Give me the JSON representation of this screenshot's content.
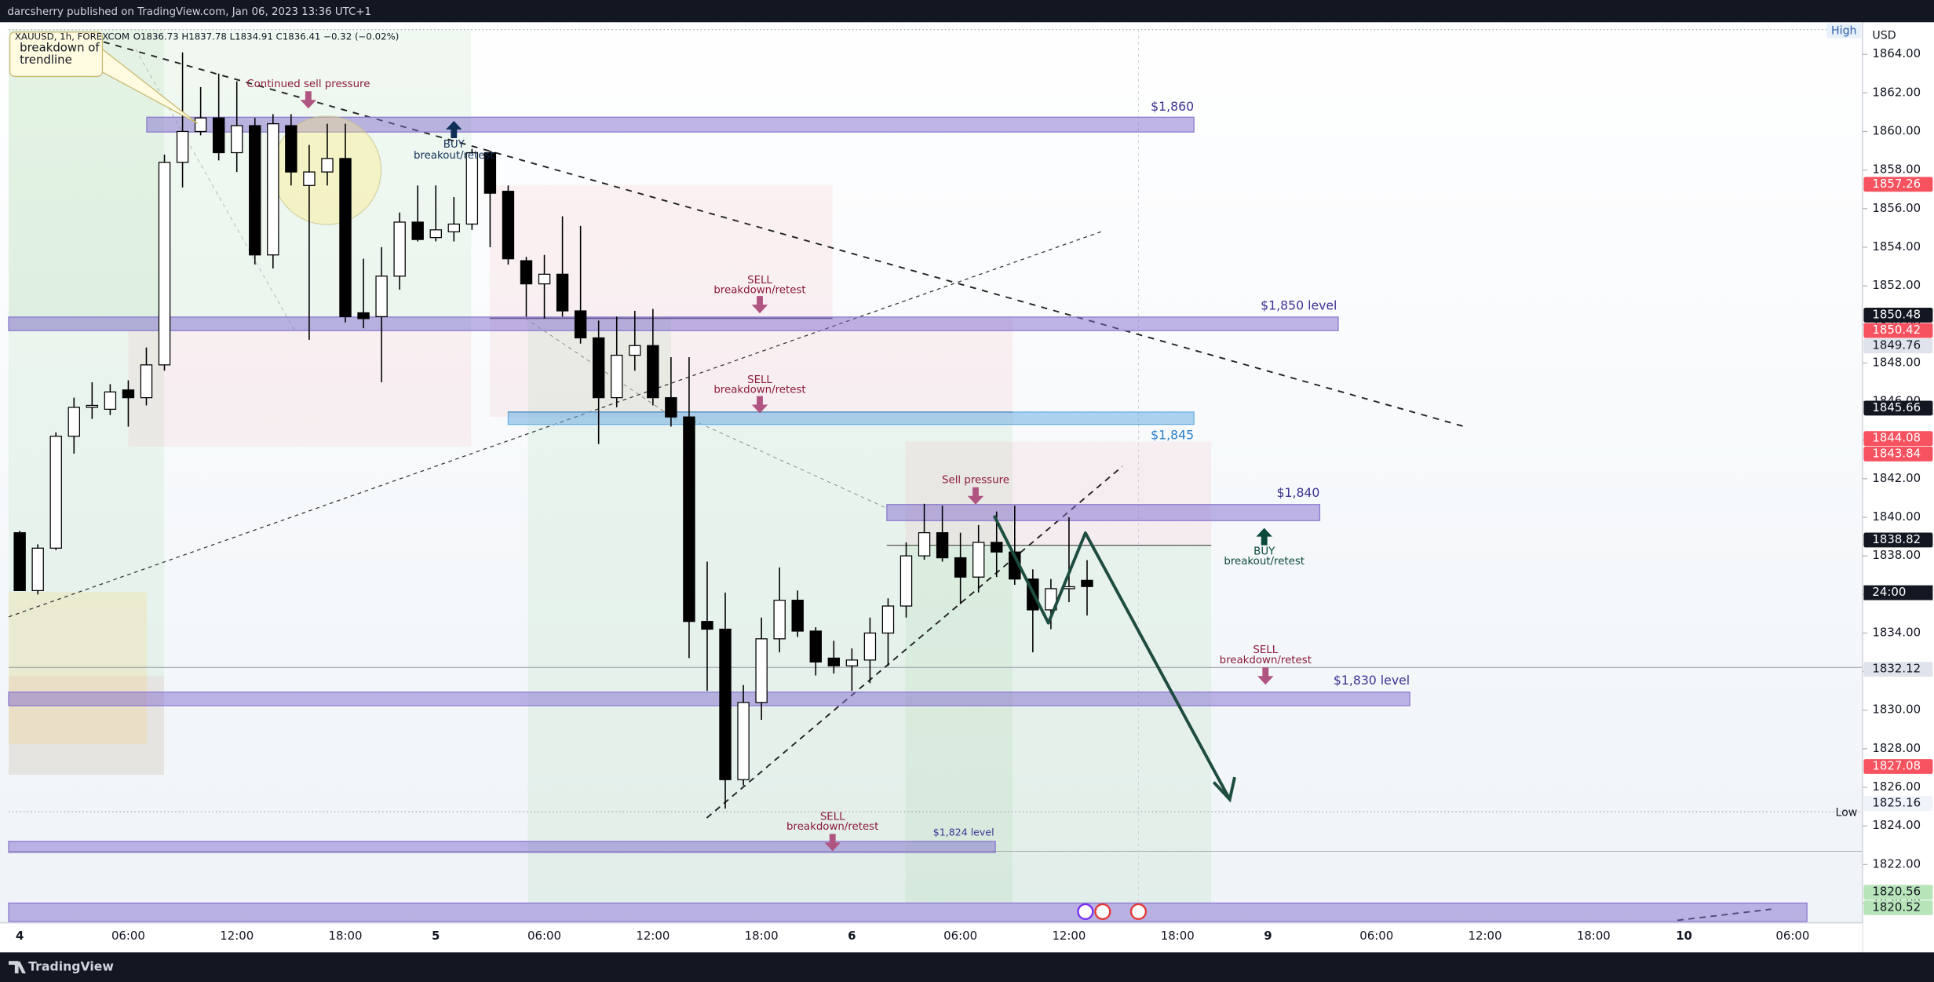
{
  "header": {
    "publisher": "darcsherry published on TradingView.com, Jan 06, 2023 13:36 UTC+1",
    "symbol": "XAUUSD, 1h, FOREXCOM",
    "ohlc": "O1836.73 H1837.78 L1834.91 C1836.41 −0.32 (−0.02%)"
  },
  "chart_data": {
    "type": "candlestick",
    "currency": "USD",
    "categories": [
      "4",
      null,
      null,
      null,
      null,
      null,
      "06:00",
      null,
      null,
      null,
      null,
      null,
      "12:00",
      null,
      null,
      null,
      null,
      null,
      "18:00",
      null,
      null,
      null,
      null,
      "5",
      null,
      null,
      null,
      null,
      null,
      "06:00",
      null,
      null,
      null,
      null,
      null,
      "12:00",
      null,
      null,
      null,
      null,
      null,
      "18:00",
      null,
      null,
      null,
      null,
      "6",
      null,
      null,
      null,
      null,
      null,
      "06:00",
      null,
      null,
      null,
      null,
      null,
      "12:00",
      null,
      null,
      null,
      null,
      null,
      "18:00",
      null,
      null,
      null,
      null,
      "9",
      null,
      null,
      null,
      null,
      null,
      "06:00",
      null,
      null,
      null,
      null,
      null,
      "12:00",
      null,
      null,
      null,
      null,
      null,
      "18:00",
      null,
      null,
      null,
      null,
      "10",
      null,
      null,
      null,
      null,
      null,
      "06:00",
      null,
      null,
      null
    ],
    "open": [
      1839.2,
      1836.2,
      1838.4,
      1844.2,
      1845.7,
      1845.6,
      1846.6,
      1846.2,
      1847.9,
      1858.4,
      1860.0,
      1860.7,
      1858.9,
      1860.3,
      1853.6,
      1860.3,
      1857.2,
      1857.9,
      1858.6,
      1850.6,
      1850.4,
      1852.5,
      1855.3,
      1854.5,
      1854.8,
      1855.2,
      1858.9,
      1856.9,
      1853.3,
      1852.1,
      1852.6,
      1850.7,
      1849.3,
      1846.2,
      1848.4,
      1848.9,
      1846.2,
      1845.2,
      1834.6,
      1834.2,
      1826.4,
      1830.4,
      1833.7,
      1835.7,
      1834.1,
      1832.7,
      1832.3,
      1832.6,
      1834.0,
      1835.4,
      1838.0,
      1839.2,
      1837.9,
      1836.9,
      1838.7,
      1838.2,
      1836.8,
      1835.2,
      1836.3,
      1836.73,
      null,
      null,
      null,
      null,
      null,
      null,
      null,
      null,
      null,
      null,
      null,
      null,
      null,
      null,
      null,
      null,
      null,
      null,
      null,
      null,
      null,
      null,
      null,
      null,
      null,
      null,
      null,
      null,
      null,
      null,
      null,
      null,
      null,
      null,
      null,
      null,
      null,
      null,
      null,
      null,
      null,
      null
    ],
    "high": [
      1839.3,
      1838.6,
      1844.4,
      1846.2,
      1847.0,
      1846.9,
      1847.1,
      1848.8,
      1858.8,
      1864.1,
      1862.3,
      1863.0,
      1862.6,
      1860.7,
      1860.9,
      1860.9,
      1859.3,
      1860.4,
      1860.4,
      1853.4,
      1854.0,
      1855.8,
      1857.2,
      1857.2,
      1856.6,
      1859.1,
      1859.0,
      1857.2,
      1853.5,
      1853.6,
      1855.6,
      1855.1,
      1850.2,
      1850.4,
      1850.7,
      1850.8,
      1848.3,
      1848.3,
      1837.7,
      1836.1,
      1831.3,
      1834.8,
      1837.4,
      1836.2,
      1834.3,
      1833.6,
      1833.2,
      1834.8,
      1835.8,
      1838.7,
      1840.7,
      1840.6,
      1839.2,
      1839.6,
      1840.3,
      1840.6,
      1837.3,
      1836.8,
      1840.0,
      1837.78,
      null,
      null,
      null,
      null,
      null,
      null,
      null,
      null,
      null,
      null,
      null,
      null,
      null,
      null,
      null,
      null,
      null,
      null,
      null,
      null,
      null,
      null,
      null,
      null,
      null,
      null,
      null,
      null,
      null,
      null,
      null,
      null,
      null,
      null,
      null,
      null,
      null,
      null,
      null,
      null,
      null,
      null
    ],
    "low": [
      1836.2,
      1836.0,
      1838.3,
      1843.3,
      1845.1,
      1845.3,
      1844.7,
      1845.8,
      1847.6,
      1857.1,
      1859.8,
      1858.5,
      1857.9,
      1853.1,
      1852.9,
      1857.2,
      1849.2,
      1857.2,
      1850.1,
      1849.8,
      1847.0,
      1851.8,
      1854.3,
      1854.3,
      1854.3,
      1854.9,
      1854.0,
      1853.1,
      1850.4,
      1850.3,
      1850.4,
      1849.0,
      1843.8,
      1845.7,
      1847.6,
      1845.8,
      1844.7,
      1832.7,
      1831.0,
      1824.9,
      1826.1,
      1829.5,
      1833.0,
      1833.8,
      1831.8,
      1831.9,
      1831.0,
      1831.4,
      1832.3,
      1834.8,
      1837.8,
      1837.7,
      1835.5,
      1836.1,
      1836.9,
      1836.5,
      1833.0,
      1834.2,
      1835.6,
      1834.91,
      null,
      null,
      null,
      null,
      null,
      null,
      null,
      null,
      null,
      null,
      null,
      null,
      null,
      null,
      null,
      null,
      null,
      null,
      null,
      null,
      null,
      null,
      null,
      null,
      null,
      null,
      null,
      null,
      null,
      null,
      null,
      null,
      null,
      null,
      null,
      null,
      null,
      null,
      null,
      null,
      null,
      null
    ],
    "close": [
      1836.2,
      1838.4,
      1844.2,
      1845.7,
      1845.8,
      1846.5,
      1846.2,
      1847.9,
      1858.4,
      1860.0,
      1860.7,
      1858.9,
      1860.3,
      1853.6,
      1860.4,
      1857.9,
      1857.9,
      1858.6,
      1850.4,
      1850.3,
      1852.5,
      1855.3,
      1854.4,
      1854.9,
      1855.2,
      1858.9,
      1856.8,
      1853.4,
      1852.1,
      1852.6,
      1850.7,
      1849.3,
      1846.2,
      1848.4,
      1848.9,
      1846.2,
      1845.2,
      1834.6,
      1834.2,
      1826.4,
      1830.4,
      1833.7,
      1835.7,
      1834.1,
      1832.5,
      1832.3,
      1832.6,
      1834.0,
      1835.4,
      1838.0,
      1839.2,
      1837.9,
      1836.9,
      1838.7,
      1838.2,
      1836.8,
      1835.2,
      1836.3,
      1836.4,
      1836.41,
      null,
      null,
      null,
      null,
      null,
      null,
      null,
      null,
      null,
      null,
      null,
      null,
      null,
      null,
      null,
      null,
      null,
      null,
      null,
      null,
      null,
      null,
      null,
      null,
      null,
      null,
      null,
      null,
      null,
      null,
      null,
      null,
      null,
      null,
      null,
      null,
      null,
      null,
      null,
      null,
      null,
      null
    ],
    "up_color": "#ffffff",
    "down_color": "#000000",
    "wick_color": "#000000",
    "ylim": [
      1818.98,
      1865.28
    ],
    "yticks": [
      {
        "value": 1820,
        "label": "1820.00"
      },
      {
        "value": 1822,
        "label": "1822.00"
      },
      {
        "value": 1824,
        "label": "1824.00"
      },
      {
        "value": 1826,
        "label": "1826.00"
      },
      {
        "value": 1828,
        "label": "1828.00"
      },
      {
        "value": 1830,
        "label": "1830.00"
      },
      {
        "value": 1832,
        "label": "1832.00"
      },
      {
        "value": 1834,
        "label": "1834.00"
      },
      {
        "value": 1836,
        "label": "1836.00"
      },
      {
        "value": 1838,
        "label": "1838.00"
      },
      {
        "value": 1840,
        "label": "1840.00"
      },
      {
        "value": 1842,
        "label": "1842.00"
      },
      {
        "value": 1844,
        "label": "1844.00"
      },
      {
        "value": 1846,
        "label": "1846.00"
      },
      {
        "value": 1848,
        "label": "1848.00"
      },
      {
        "value": 1850,
        "label": "1850.00"
      },
      {
        "value": 1852,
        "label": "1852.00"
      },
      {
        "value": 1854,
        "label": "1854.00"
      },
      {
        "value": 1856,
        "label": "1856.00"
      },
      {
        "value": 1858,
        "label": "1858.00"
      },
      {
        "value": 1860,
        "label": "1860.00"
      },
      {
        "value": 1862,
        "label": "1862.00"
      },
      {
        "value": 1864,
        "label": "1864.00"
      }
    ],
    "price_labels": [
      {
        "value": 1857.26,
        "color": "#f7525f",
        "text_color": "#ffffff"
      },
      {
        "value": 1850.48,
        "color": "#131722",
        "text_color": "#ffffff"
      },
      {
        "value": 1850.42,
        "color": "#f7525f",
        "text_color": "#ffffff"
      },
      {
        "value": 1849.76,
        "color": "#e0e3eb",
        "text_color": "#131722"
      },
      {
        "value": 1845.66,
        "color": "#131722",
        "text_color": "#ffffff"
      },
      {
        "value": 1844.08,
        "color": "#f7525f",
        "text_color": "#ffffff"
      },
      {
        "value": 1843.84,
        "color": "#f7525f",
        "text_color": "#ffffff"
      },
      {
        "value": 1838.82,
        "color": "#131722",
        "text_color": "#ffffff"
      },
      {
        "value": 1832.12,
        "color": "#e0e3eb",
        "text_color": "#131722"
      },
      {
        "value": 1827.08,
        "color": "#f7525f",
        "text_color": "#ffffff"
      },
      {
        "value": 1825.16,
        "color": "#f0f3fa",
        "text_color": "#131722"
      },
      {
        "value": 1820.56,
        "color": "#b7e4b8",
        "text_color": "#131722"
      },
      {
        "value": 1820.52,
        "color": "#b7e4b8",
        "text_color": "#131722"
      }
    ],
    "countdown": "24:00",
    "high_label": "High",
    "low_label": "Low",
    "callout": [
      "breakdown of",
      "trendline"
    ],
    "zones": [
      {
        "label": "$1,860"
      },
      {
        "label": "$1,850 level"
      },
      {
        "label": "$1,845"
      },
      {
        "label": "$1,840"
      },
      {
        "label": "$1,830 level"
      },
      {
        "label": "$1,824 level"
      }
    ],
    "annotations": [
      {
        "text": "Continued sell pressure"
      },
      {
        "title": "BUY",
        "text": "breakout/retest"
      },
      {
        "title": "SELL",
        "text": "breakdown/retest"
      },
      {
        "title": "SELL",
        "text": "breakdown/retest"
      },
      {
        "text": "Sell pressure"
      },
      {
        "title": "BUY",
        "text": "breakout/retest"
      },
      {
        "title": "SELL",
        "text": "breakdown/retest"
      },
      {
        "title": "SELL",
        "text": "breakdown/retest"
      }
    ]
  },
  "footer": "TradingView"
}
